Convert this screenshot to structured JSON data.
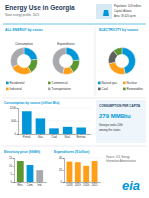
{
  "header": {
    "title": "Energy Use in Georgia",
    "subtitle": "State energy profile, 2021",
    "facts": [
      "Population: 10.8 million",
      "Capital: Atlanta",
      "Area: 59,425 sq mi"
    ]
  },
  "chart_data": [
    {
      "type": "pie",
      "title": "ALL ENERGY by sector",
      "categories": [
        "Residential",
        "Commercial",
        "Industrial",
        "Transportation"
      ],
      "colors": [
        "#0096d7",
        "#5d9732",
        "#ff9e18",
        "#a7a9ac"
      ],
      "series": [
        {
          "name": "Consumption",
          "values": [
            23,
            18,
            26,
            33
          ]
        },
        {
          "name": "Expenditures",
          "values": [
            24,
            17,
            13,
            46
          ]
        }
      ]
    },
    {
      "type": "pie",
      "title": "ELECTRICITY by source",
      "categories": [
        "Natural gas",
        "Nuclear",
        "Coal",
        "Renewables"
      ],
      "colors": [
        "#0096d7",
        "#ff9e18",
        "#5f6062",
        "#5d9732"
      ],
      "values": [
        46,
        26,
        17,
        11
      ]
    },
    {
      "type": "bar",
      "title": "Consumption by source (trillion Btu)",
      "categories": [
        "Petrol.",
        "Gas",
        "Coal",
        "Nucl.",
        "Renew."
      ],
      "values": [
        1050,
        720,
        260,
        330,
        300
      ],
      "color": "#0096d7",
      "ylim": [
        0,
        1200
      ],
      "yticks": [
        0,
        600,
        1200
      ],
      "grid": true
    },
    {
      "type": "bar",
      "title": "Electricity price (¢/kWh)",
      "categories": [
        "Res.",
        "Com.",
        "Ind."
      ],
      "values": [
        13.1,
        10.6,
        7.4
      ],
      "colors": [
        "#5d9732",
        "#0096d7",
        "#a7a9ac"
      ],
      "ylim": [
        0,
        15
      ],
      "yticks": [
        0,
        5,
        10,
        15
      ],
      "grid": false
    },
    {
      "type": "bar",
      "title": "Expenditures ($ billion)",
      "categories": [
        "2018",
        "2019",
        "2020",
        "2021"
      ],
      "values": [
        34,
        33,
        27,
        35
      ],
      "color": "#ff9e18",
      "ylim": [
        0,
        40
      ],
      "yticks": [
        0,
        20,
        40
      ],
      "grid": true
    }
  ],
  "per_capita": {
    "title": "CONSUMPTION PER CAPITA",
    "value": "279 MMBtu",
    "text": [
      "Georgia ranks 24th",
      "among the states"
    ]
  },
  "footer": {
    "source": [
      "Source: U.S. Energy",
      "Information Administration"
    ],
    "logo": "eia"
  }
}
